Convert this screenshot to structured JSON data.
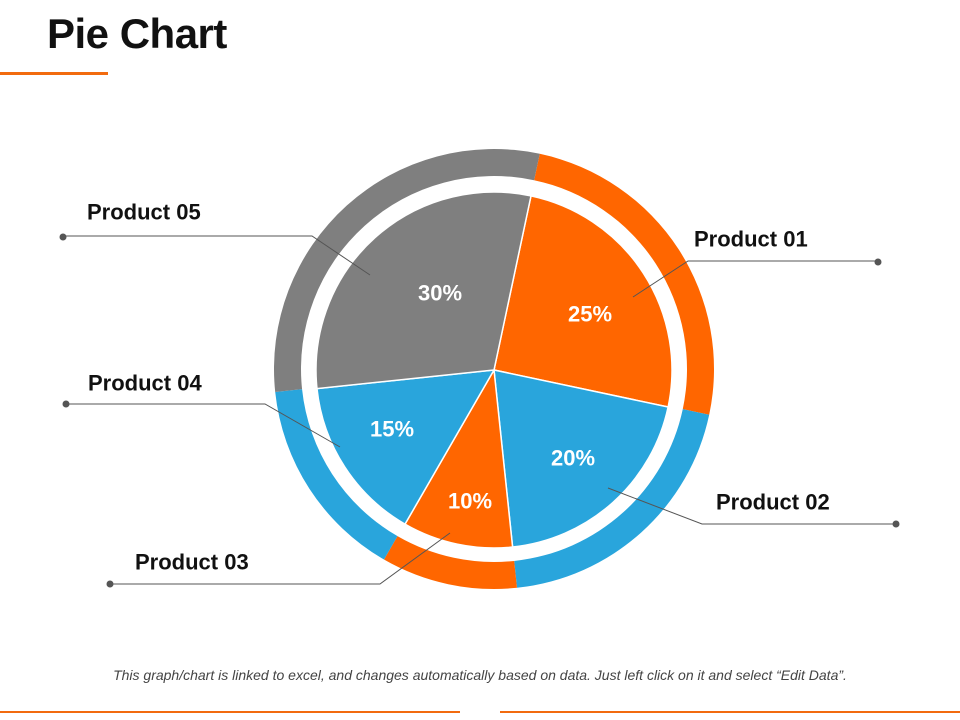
{
  "page": {
    "title": "Pie Chart",
    "footnote": "This graph/chart is linked to excel, and changes automatically based on data. Just left click on it and select “Edit Data”.",
    "accent_color": "#F26B0F"
  },
  "chart_data": {
    "type": "pie",
    "categories": [
      "Product 01",
      "Product 02",
      "Product 03",
      "Product 04",
      "Product 05"
    ],
    "values": [
      25,
      20,
      10,
      15,
      30
    ],
    "value_labels": [
      "25%",
      "20%",
      "10%",
      "15%",
      "30%"
    ],
    "colors": [
      "#FF6600",
      "#29A5DC",
      "#FF6600",
      "#29A5DC",
      "#7F7F7F"
    ],
    "outer_ring_colors": [
      "#FF6600",
      "#29A5DC",
      "#FF6600",
      "#29A5DC",
      "#7F7F7F"
    ],
    "legend": "callout labels"
  }
}
